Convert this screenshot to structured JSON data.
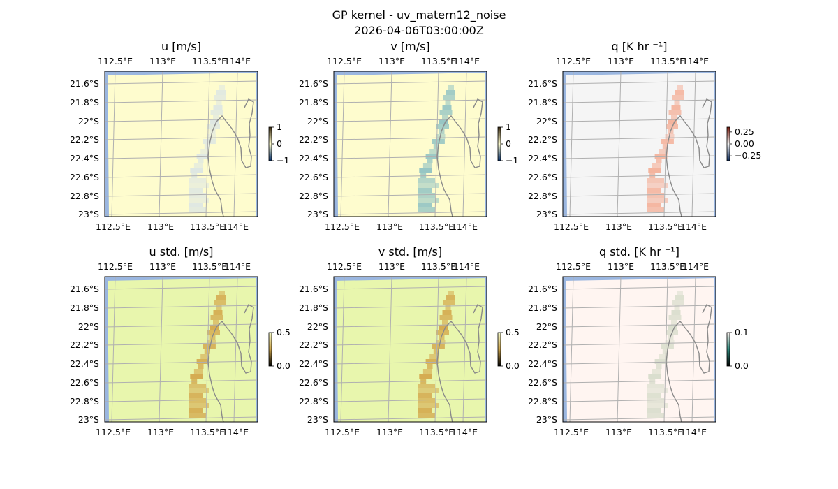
{
  "figure": {
    "title": "GP kernel - uv_matern12_noise",
    "timestamp": "2026-04-06T03:00:00Z"
  },
  "chart_data": [
    {
      "type": "heatmap",
      "title": "u [m/s]",
      "variable": "u",
      "x_tick_labels": [
        "112.5°E",
        "113°E",
        "113.5°E",
        "114°E"
      ],
      "y_tick_labels": [
        "21.6°S",
        "21.8°S",
        "22°S",
        "22.2°S",
        "22.4°S",
        "22.6°S",
        "22.8°S",
        "23°S"
      ],
      "background_color": "#fefcce",
      "feature_color": "#dde6e3",
      "feature": "near-zero values along the coastline band around 113.6–113.8°E",
      "colorbar": {
        "ticks": [
          "1",
          "0",
          "−1"
        ],
        "range": [
          -1,
          1
        ],
        "colors": [
          "#07306b",
          "#fefcce",
          "#3b2c12"
        ]
      }
    },
    {
      "type": "heatmap",
      "title": "v [m/s]",
      "variable": "v",
      "x_tick_labels": [
        "112.5°E",
        "113°E",
        "113.5°E",
        "114°E"
      ],
      "y_tick_labels": [
        "21.6°S",
        "21.8°S",
        "22°S",
        "22.2°S",
        "22.4°S",
        "22.6°S",
        "22.8°S",
        "23°S"
      ],
      "background_color": "#fefcce",
      "feature_color": "#93c4c4",
      "feature": "positive values north-east of 113.6°E, slight negative values near 23°S",
      "colorbar": {
        "ticks": [
          "1",
          "0",
          "−1"
        ],
        "range": [
          -1,
          1
        ],
        "colors": [
          "#07306b",
          "#fefcce",
          "#3b2c12"
        ]
      }
    },
    {
      "type": "heatmap",
      "title": "q [K hr ⁻¹]",
      "variable": "q",
      "x_tick_labels": [
        "112.5°E",
        "113°E",
        "113.5°E",
        "114°E"
      ],
      "y_tick_labels": [
        "21.6°S",
        "21.8°S",
        "22°S",
        "22.2°S",
        "22.4°S",
        "22.6°S",
        "22.8°S",
        "23°S"
      ],
      "background_color": "#f5f5f5",
      "feature_color": "#f4b19a",
      "feature": "positive heating along the coastline band, small negative patch near 21.6°S",
      "colorbar": {
        "ticks": [
          "0.25",
          "0.00",
          "−0.25"
        ],
        "range": [
          -0.35,
          0.35
        ],
        "colors": [
          "#0b2a5c",
          "#f5f5f5",
          "#7a1a0c"
        ]
      }
    },
    {
      "type": "heatmap",
      "title": "u std. [m/s]",
      "variable": "u_std",
      "x_tick_labels": [
        "112.5°E",
        "113°E",
        "113.5°E",
        "114°E"
      ],
      "y_tick_labels": [
        "21.6°S",
        "21.8°S",
        "22°S",
        "22.2°S",
        "22.4°S",
        "22.6°S",
        "22.8°S",
        "23°S"
      ],
      "background_color": "#e8f6ad",
      "feature_color": "#d4a94e",
      "feature": "higher uncertainty (≈0.25–0.3) along the coastline band and south-west corner",
      "colorbar": {
        "ticks": [
          "0.5",
          "0.0"
        ],
        "range": [
          0,
          0.5
        ],
        "colors": [
          "#000000",
          "#c9a24a",
          "#f6fbc9"
        ]
      }
    },
    {
      "type": "heatmap",
      "title": "v std. [m/s]",
      "variable": "v_std",
      "x_tick_labels": [
        "112.5°E",
        "113°E",
        "113.5°E",
        "114°E"
      ],
      "y_tick_labels": [
        "21.6°S",
        "21.8°S",
        "22°S",
        "22.2°S",
        "22.4°S",
        "22.6°S",
        "22.8°S",
        "23°S"
      ],
      "background_color": "#e8f6ad",
      "feature_color": "#d4a94e",
      "feature": "higher uncertainty (≈0.25–0.3) along the coastline band and south-west corner",
      "colorbar": {
        "ticks": [
          "0.5",
          "0.0"
        ],
        "range": [
          0,
          0.5
        ],
        "colors": [
          "#000000",
          "#c9a24a",
          "#f6fbc9"
        ]
      }
    },
    {
      "type": "heatmap",
      "title": "q std. [K hr ⁻¹]",
      "variable": "q_std",
      "x_tick_labels": [
        "112.5°E",
        "113°E",
        "113.5°E",
        "114°E"
      ],
      "y_tick_labels": [
        "21.6°S",
        "21.8°S",
        "22°S",
        "22.2°S",
        "22.4°S",
        "22.6°S",
        "22.8°S",
        "23°S"
      ],
      "background_color": "#fff5f1",
      "feature_color": "#d9ddcc",
      "feature": "slightly elevated uncertainty along the coastline band",
      "colorbar": {
        "ticks": [
          "0.1",
          "0.0"
        ],
        "range": [
          0,
          0.1
        ],
        "colors": [
          "#000000",
          "#2f8a7e",
          "#fff5f1"
        ]
      }
    }
  ],
  "map_style": {
    "gridline_color": "#b0b0b0",
    "coastline_color": "#8a8a8a",
    "ocean_edge_color": "#9ab6e0"
  }
}
